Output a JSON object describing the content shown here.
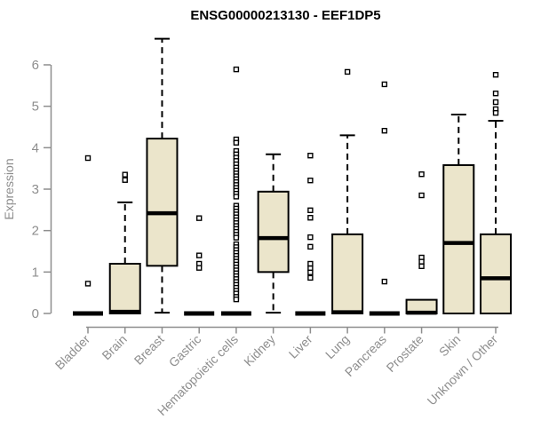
{
  "title": "ENSG00000213130 - EEF1DP5",
  "colors": {
    "box_fill": "#ebe5cb",
    "box_stroke": "#000000",
    "median_color": "#000000",
    "axis": "#8e8e8e",
    "title_color": "#000000",
    "outlier_fill": "#ffffff",
    "background": "#ffffff"
  },
  "axes": {
    "y_label": "Expression",
    "y_tick_labels": [
      "0",
      "1",
      "2",
      "3",
      "4",
      "5",
      "6"
    ]
  },
  "chart_data": {
    "type": "boxplot",
    "title": "ENSG00000213130 - EEF1DP5",
    "xlabel": "",
    "ylabel": "Expression",
    "ylim": [
      0,
      6.8
    ],
    "y_ticks": [
      0,
      1,
      2,
      3,
      4,
      5,
      6
    ],
    "grid": false,
    "legend": "none",
    "categories": [
      "Bladder",
      "Brain",
      "Breast",
      "Gastric",
      "Hematopoietic cells",
      "Kidney",
      "Liver",
      "Lung",
      "Pancreas",
      "Prostate",
      "Skin",
      "Unknown / Other"
    ],
    "boxes": [
      {
        "category": "Bladder",
        "q1": 0,
        "median": 0,
        "q3": 0,
        "whisker_low": 0,
        "whisker_high": 0,
        "outliers": [
          3.75,
          0.72
        ]
      },
      {
        "category": "Brain",
        "q1": 0,
        "median": 0.04,
        "q3": 1.2,
        "whisker_low": 0,
        "whisker_high": 2.68,
        "outliers": [
          3.35,
          3.22
        ]
      },
      {
        "category": "Breast",
        "q1": 1.15,
        "median": 2.42,
        "q3": 4.22,
        "whisker_low": 0.02,
        "whisker_high": 6.63,
        "outliers": []
      },
      {
        "category": "Gastric",
        "q1": 0,
        "median": 0,
        "q3": 0,
        "whisker_low": 0,
        "whisker_high": 0,
        "outliers": [
          2.3,
          1.4,
          1.2,
          1.1
        ]
      },
      {
        "category": "Hematopoietic cells",
        "q1": 0,
        "median": 0,
        "q3": 0,
        "whisker_low": 0,
        "whisker_high": 0,
        "outliers": [
          5.89,
          4.2,
          4.12,
          3.92,
          3.84,
          3.76,
          3.68,
          3.6,
          3.52,
          3.45,
          3.38,
          3.31,
          3.24,
          3.17,
          3.1,
          3.03,
          2.96,
          2.89,
          2.82,
          2.6,
          2.53,
          2.46,
          2.39,
          2.32,
          2.25,
          2.18,
          2.11,
          2.04,
          1.97,
          1.9,
          1.83,
          1.67,
          1.6,
          1.53,
          1.46,
          1.39,
          1.32,
          1.25,
          1.18,
          1.11,
          1.04,
          0.97,
          0.9,
          0.83,
          0.76,
          0.69,
          0.62,
          0.55,
          0.48,
          0.4,
          0.34
        ]
      },
      {
        "category": "Kidney",
        "q1": 1.0,
        "median": 1.82,
        "q3": 2.94,
        "whisker_low": 0.02,
        "whisker_high": 3.84,
        "outliers": []
      },
      {
        "category": "Liver",
        "q1": 0,
        "median": 0,
        "q3": 0,
        "whisker_low": 0,
        "whisker_high": 0,
        "outliers": [
          3.81,
          3.21,
          2.49,
          2.31,
          1.84,
          1.61,
          1.2,
          1.09,
          0.99,
          0.86
        ]
      },
      {
        "category": "Lung",
        "q1": 0,
        "median": 0.03,
        "q3": 1.91,
        "whisker_low": 0,
        "whisker_high": 4.3,
        "outliers": [
          5.83
        ]
      },
      {
        "category": "Pancreas",
        "q1": 0,
        "median": 0,
        "q3": 0,
        "whisker_low": 0,
        "whisker_high": 0,
        "outliers": [
          5.53,
          4.41,
          0.77
        ]
      },
      {
        "category": "Prostate",
        "q1": 0,
        "median": 0.02,
        "q3": 0.33,
        "whisker_low": 0,
        "whisker_high": 0.33,
        "outliers": [
          3.36,
          2.85,
          1.35,
          1.25,
          1.14
        ]
      },
      {
        "category": "Skin",
        "q1": 0,
        "median": 1.7,
        "q3": 3.58,
        "whisker_low": 0,
        "whisker_high": 4.8,
        "outliers": []
      },
      {
        "category": "Unknown / Other",
        "q1": 0,
        "median": 0.85,
        "q3": 1.91,
        "whisker_low": 0,
        "whisker_high": 4.65,
        "outliers": [
          5.76,
          5.31,
          5.1,
          4.93,
          4.84
        ]
      }
    ]
  }
}
